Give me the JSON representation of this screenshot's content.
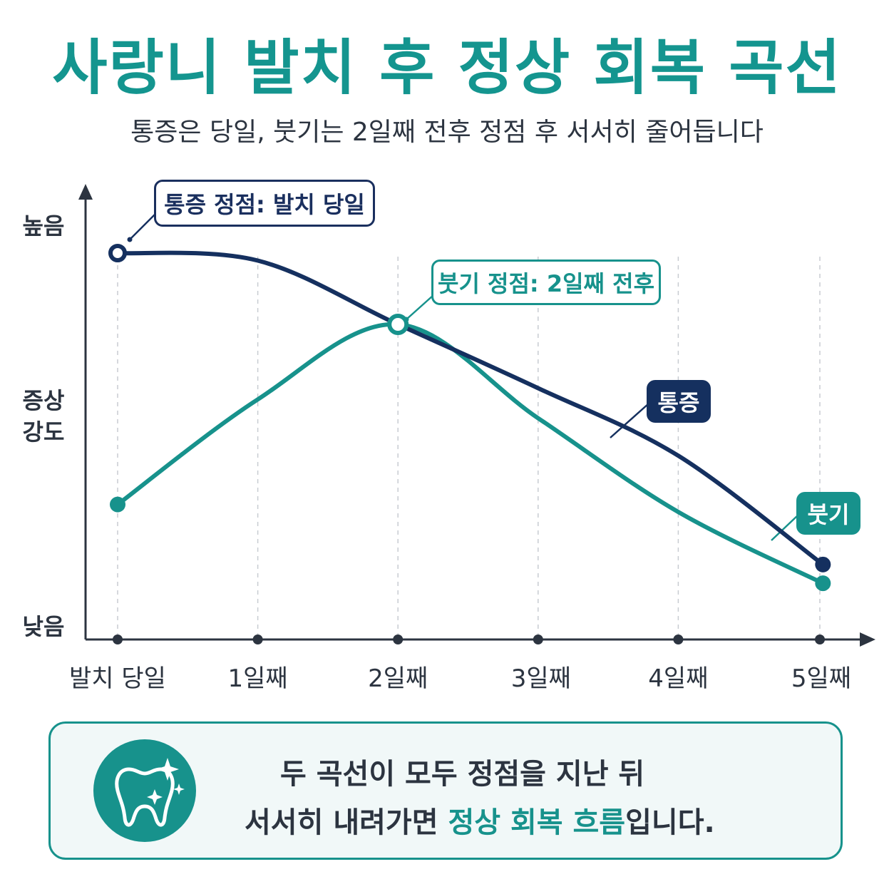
{
  "header": {
    "title": "사랑니 발치 후 정상 회복 곡선",
    "subtitle": "통증은 당일, 붓기는 2일째 전후 정점 후 서서히 줄어듭니다"
  },
  "callouts": {
    "pain_peak": "통증 정점: 발치 당일",
    "swelling_peak": "붓기 정점: 2일째 전후"
  },
  "series_tags": {
    "pain": "통증",
    "swelling": "붓기"
  },
  "y_axis": {
    "high": "높음",
    "mid_line1": "증상",
    "mid_line2": "강도",
    "low": "낮음"
  },
  "colors": {
    "pain": "#15305f",
    "swelling": "#17928c",
    "title": "#14958f",
    "axis": "#2c3440"
  },
  "chart_data": {
    "type": "line",
    "categories": [
      "발치 당일",
      "1일째",
      "2일째",
      "3일째",
      "4일째",
      "5일째"
    ],
    "ylabel": "증상 강도",
    "y_ticks": [
      "낮음",
      "높음"
    ],
    "ylim": [
      0,
      10
    ],
    "grid": "vertical dashed",
    "series": [
      {
        "name": "통증",
        "x": [
          0,
          1,
          2,
          3,
          4,
          5.2
        ],
        "values": [
          9.5,
          9.3,
          7.6,
          5.9,
          4.1,
          1.2
        ]
      },
      {
        "name": "붓기",
        "x": [
          0,
          1,
          2,
          3,
          4,
          5.2
        ],
        "values": [
          2.8,
          5.6,
          7.6,
          5.1,
          2.6,
          0.7
        ]
      }
    ],
    "annotations": [
      "통증 정점: 발치 당일",
      "붓기 정점: 2일째 전후"
    ]
  },
  "bottom_note": {
    "line1": "두 곡선이 모두 정점을 지난 뒤",
    "line2_prefix": "서서히 내려가면 ",
    "line2_highlight": "정상 회복 흐름",
    "line2_suffix": "입니다.",
    "icon": "tooth-sparkle-icon"
  }
}
